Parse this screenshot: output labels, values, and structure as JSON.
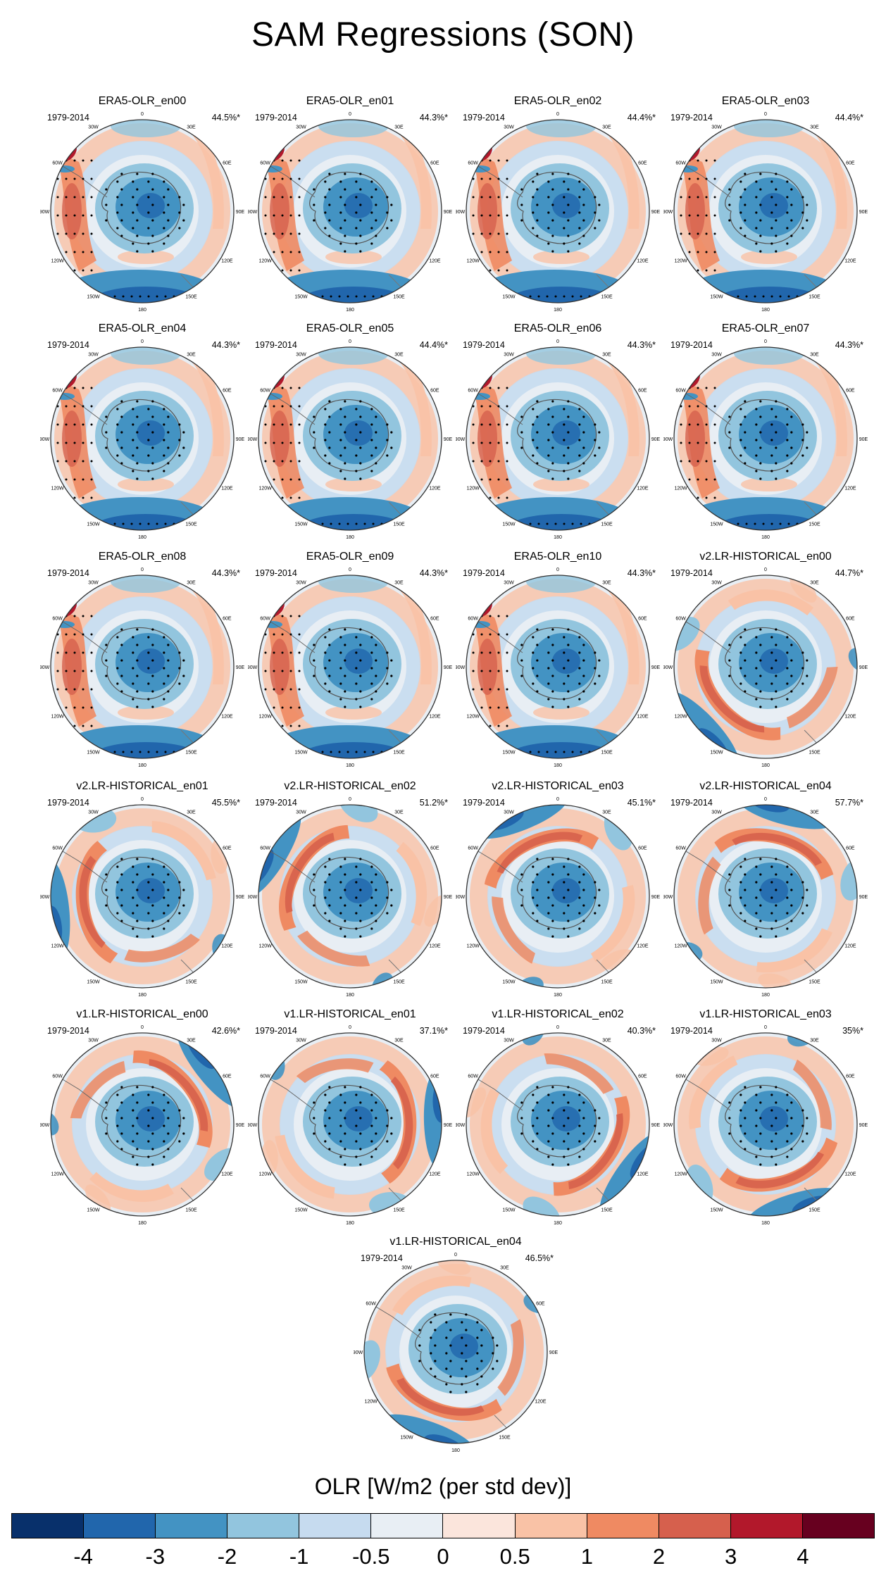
{
  "title": "SAM Regressions (SON)",
  "panels": [
    {
      "title": "ERA5-OLR_en00",
      "period": "1979-2014",
      "pct": "44.5%*"
    },
    {
      "title": "ERA5-OLR_en01",
      "period": "1979-2014",
      "pct": "44.3%*"
    },
    {
      "title": "ERA5-OLR_en02",
      "period": "1979-2014",
      "pct": "44.4%*"
    },
    {
      "title": "ERA5-OLR_en03",
      "period": "1979-2014",
      "pct": "44.4%*"
    },
    {
      "title": "ERA5-OLR_en04",
      "period": "1979-2014",
      "pct": "44.3%*"
    },
    {
      "title": "ERA5-OLR_en05",
      "period": "1979-2014",
      "pct": "44.4%*"
    },
    {
      "title": "ERA5-OLR_en06",
      "period": "1979-2014",
      "pct": "44.3%*"
    },
    {
      "title": "ERA5-OLR_en07",
      "period": "1979-2014",
      "pct": "44.3%*"
    },
    {
      "title": "ERA5-OLR_en08",
      "period": "1979-2014",
      "pct": "44.3%*"
    },
    {
      "title": "ERA5-OLR_en09",
      "period": "1979-2014",
      "pct": "44.3%*"
    },
    {
      "title": "ERA5-OLR_en10",
      "period": "1979-2014",
      "pct": "44.3%*"
    },
    {
      "title": "v2.LR-HISTORICAL_en00",
      "period": "1979-2014",
      "pct": "44.7%*"
    },
    {
      "title": "v2.LR-HISTORICAL_en01",
      "period": "1979-2014",
      "pct": "45.5%*"
    },
    {
      "title": "v2.LR-HISTORICAL_en02",
      "period": "1979-2014",
      "pct": "51.2%*"
    },
    {
      "title": "v2.LR-HISTORICAL_en03",
      "period": "1979-2014",
      "pct": "45.1%*"
    },
    {
      "title": "v2.LR-HISTORICAL_en04",
      "period": "1979-2014",
      "pct": "57.7%*"
    },
    {
      "title": "v1.LR-HISTORICAL_en00",
      "period": "1979-2014",
      "pct": "42.6%*"
    },
    {
      "title": "v1.LR-HISTORICAL_en01",
      "period": "1979-2014",
      "pct": "37.1%*"
    },
    {
      "title": "v1.LR-HISTORICAL_en02",
      "period": "1979-2014",
      "pct": "40.3%*"
    },
    {
      "title": "v1.LR-HISTORICAL_en03",
      "period": "1979-2014",
      "pct": "35%*"
    },
    {
      "title": "v1.LR-HISTORICAL_en04",
      "period": "1979-2014",
      "pct": "46.5%*"
    }
  ],
  "lon_labels": [
    "0",
    "30E",
    "60E",
    "90E",
    "120E",
    "150E",
    "180",
    "150W",
    "120W",
    "90W",
    "60W",
    "30W"
  ],
  "colorbar": {
    "title": "OLR [W/m2 (per std dev)]",
    "ticks": [
      "-4",
      "-3",
      "-2",
      "-1",
      "-0.5",
      "0",
      "0.5",
      "1",
      "2",
      "3",
      "4"
    ],
    "colors": [
      "#08306b",
      "#2166ac",
      "#4393c3",
      "#92c5de",
      "#c6dbef",
      "#e8eef4",
      "#fbe5dc",
      "#f9c2a6",
      "#ef8a62",
      "#d6604d",
      "#b2182b",
      "#67001f"
    ]
  }
}
